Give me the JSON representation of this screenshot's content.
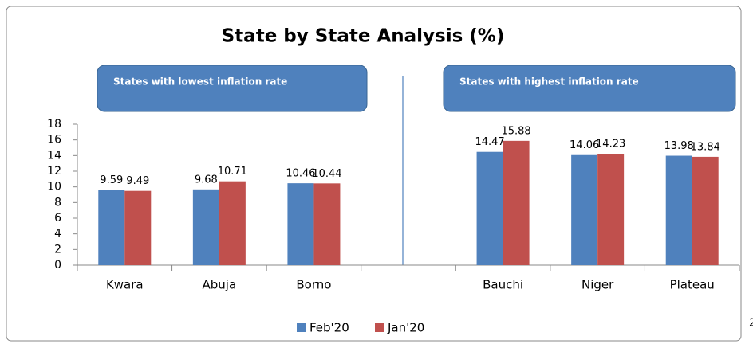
{
  "chart_data": {
    "type": "bar",
    "title": "State by State Analysis (%)",
    "annotations": [
      "States with lowest inflation rate",
      "States with highest inflation rate"
    ],
    "categories": [
      "Kwara",
      "Abuja",
      "Borno",
      null,
      "Bauchi",
      "Niger",
      "Plateau"
    ],
    "series": [
      {
        "name": "Feb'20",
        "color": "#4f81bd",
        "values": [
          9.59,
          9.68,
          10.46,
          null,
          14.47,
          14.06,
          13.98
        ]
      },
      {
        "name": "Jan'20",
        "color": "#c0504d",
        "values": [
          9.49,
          10.71,
          10.44,
          null,
          15.88,
          14.23,
          13.84
        ]
      }
    ],
    "ylim": [
      0,
      18
    ],
    "yticks": [
      0,
      2,
      4,
      6,
      8,
      10,
      12,
      14,
      16,
      18
    ],
    "grid": false,
    "legend": "bottom"
  },
  "page_marker": "2"
}
